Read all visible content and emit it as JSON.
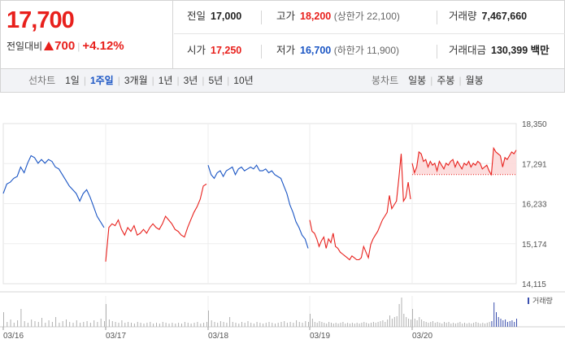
{
  "quote": {
    "price": "17,700",
    "change_label": "전일대비",
    "change_amount": "700",
    "change_pct": "+4.12%",
    "stats_row1": [
      {
        "key": "전일",
        "value": "17,000",
        "tone": "plain"
      },
      {
        "key": "고가",
        "value": "18,200",
        "tone": "up",
        "sub": "(상한가 22,100)"
      },
      {
        "key": "거래량",
        "value": "7,467,660",
        "tone": "plain"
      }
    ],
    "stats_row2": [
      {
        "key": "시가",
        "value": "17,250",
        "tone": "up"
      },
      {
        "key": "저가",
        "value": "16,700",
        "tone": "down",
        "sub": "(하한가 11,900)"
      },
      {
        "key": "거래대금",
        "value": "130,399 백만",
        "tone": "plain"
      }
    ]
  },
  "line_tabs": {
    "label": "선차트",
    "items": [
      {
        "label": "1일",
        "active": false
      },
      {
        "label": "1주일",
        "active": true
      },
      {
        "label": "3개월",
        "active": false
      },
      {
        "label": "1년",
        "active": false
      },
      {
        "label": "3년",
        "active": false
      },
      {
        "label": "5년",
        "active": false
      },
      {
        "label": "10년",
        "active": false
      }
    ]
  },
  "candle_tabs": {
    "label": "봉차트",
    "items": [
      {
        "label": "일봉"
      },
      {
        "label": "주봉"
      },
      {
        "label": "월봉"
      }
    ]
  },
  "colors": {
    "up": "#e8201c",
    "down": "#1a55c4",
    "volume": "#b0b0b0",
    "volume_latest": "#3a4fae",
    "fill_above_ref": "#fbd7d7"
  },
  "chart_data": {
    "type": "line",
    "title": "",
    "xlabel": "",
    "ylabel": "",
    "ylim": [
      14115,
      18350
    ],
    "y_ticks": [
      "18,350",
      "17,291",
      "16,233",
      "15,174",
      "14,115"
    ],
    "x_ticks": [
      "03/16",
      "03/17",
      "03/18",
      "03/19",
      "03/20"
    ],
    "reference_price": 17000,
    "volume_label": "거래량",
    "days": [
      {
        "date": "03/16",
        "color": "down",
        "points": [
          16500,
          16750,
          16800,
          16900,
          16950,
          17200,
          17050,
          17300,
          17500,
          17450,
          17300,
          17400,
          17300,
          17400,
          17350,
          17200,
          17150,
          17000,
          16850,
          16700,
          16600,
          16500,
          16300,
          16500,
          16600,
          16400,
          16150,
          15900,
          15750,
          15600
        ]
      },
      {
        "date": "03/17",
        "color": "up",
        "points": [
          14700,
          15600,
          15700,
          15650,
          15800,
          15550,
          15400,
          15600,
          15500,
          15650,
          15400,
          15450,
          15550,
          15450,
          15600,
          15700,
          15600,
          15550,
          15700,
          15900,
          15800,
          15700,
          15550,
          15500,
          15400,
          15350,
          15600,
          15800,
          16000,
          16150,
          16350,
          16700,
          16750
        ]
      },
      {
        "date": "03/18",
        "color": "down",
        "points": [
          17250,
          17000,
          16900,
          17050,
          17100,
          16950,
          17100,
          17150,
          17200,
          17000,
          17150,
          17200,
          17100,
          17150,
          17200,
          17150,
          17250,
          17100,
          17100,
          17150,
          17050,
          17100,
          17000,
          16950,
          16900,
          16700,
          16500,
          16200,
          16000,
          15750,
          15600,
          15400,
          15300,
          15050
        ]
      },
      {
        "date": "03/19",
        "color": "up",
        "points": [
          15800,
          15500,
          15450,
          15300,
          15100,
          15250,
          15350,
          15050,
          15300,
          15200,
          15450,
          15100,
          15050,
          14950,
          14900,
          14850,
          14800,
          14750,
          14850,
          14800,
          14750,
          14750,
          14800,
          15100,
          14950,
          14800,
          15150,
          15300,
          15400,
          15500,
          15650,
          15800,
          15900,
          16000,
          16450,
          16100,
          16200,
          16300,
          16900,
          17550,
          16300,
          16400,
          16800,
          16350
        ]
      },
      {
        "date": "03/20",
        "color": "up",
        "points": [
          17300,
          17050,
          17200,
          17600,
          17550,
          17350,
          17400,
          17200,
          17350,
          17250,
          17300,
          17100,
          17350,
          17250,
          17150,
          17300,
          17250,
          17350,
          17400,
          17200,
          17350,
          17250,
          17150,
          17300,
          17250,
          17350,
          17200,
          17300,
          17250,
          17350,
          17300,
          17150,
          17200,
          17250,
          17100,
          17000,
          17700,
          17600,
          17550,
          17500,
          17200,
          17450,
          17400,
          17500,
          17600,
          17550,
          17650
        ]
      }
    ],
    "volume": [
      {
        "date": "03/16",
        "values": [
          18,
          6,
          9,
          5,
          8,
          22,
          7,
          5,
          9,
          7,
          6,
          11,
          5,
          8,
          6,
          12,
          5,
          7,
          9,
          6,
          5,
          8,
          5,
          6,
          7,
          5,
          8,
          6,
          10,
          7
        ]
      },
      {
        "date": "03/17",
        "values": [
          28,
          9,
          7,
          6,
          5,
          8,
          5,
          6,
          5,
          4,
          6,
          5,
          4,
          5,
          6,
          4,
          5,
          4,
          6,
          5,
          4,
          5,
          4,
          5,
          4,
          6,
          5,
          4,
          5,
          6,
          4,
          5,
          6
        ]
      },
      {
        "date": "03/18",
        "values": [
          20,
          8,
          6,
          5,
          7,
          6,
          5,
          12,
          6,
          5,
          4,
          6,
          5,
          7,
          5,
          4,
          6,
          5,
          4,
          5,
          6,
          5,
          4,
          5,
          6,
          7,
          5,
          6,
          5,
          8,
          6,
          5,
          7,
          6
        ]
      },
      {
        "date": "03/19",
        "values": [
          16,
          10,
          6,
          5,
          7,
          6,
          5,
          4,
          6,
          5,
          4,
          5,
          4,
          5,
          6,
          4,
          5,
          4,
          5,
          4,
          5,
          4,
          5,
          6,
          5,
          4,
          5,
          6,
          5,
          6,
          7,
          8,
          6,
          9,
          14,
          10,
          12,
          13,
          28,
          36,
          16,
          12,
          10,
          9
        ]
      },
      {
        "date": "03/20",
        "values": [
          22,
          10,
          8,
          12,
          9,
          7,
          6,
          5,
          6,
          7,
          5,
          6,
          5,
          4,
          6,
          5,
          6,
          4,
          5,
          4,
          5,
          6,
          4,
          5,
          4,
          5,
          4,
          5,
          6,
          5,
          4,
          5,
          4,
          5,
          6,
          7,
          30,
          18,
          12,
          10,
          8,
          9,
          6,
          7,
          8,
          6,
          10
        ]
      }
    ]
  }
}
